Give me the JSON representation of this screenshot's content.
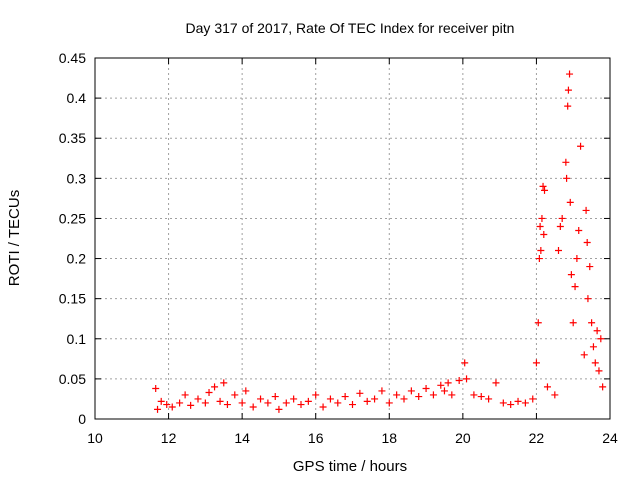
{
  "chart_data": {
    "type": "scatter",
    "title": "Day 317 of 2017, Rate Of TEC Index for receiver pitn",
    "xlabel": "GPS time / hours",
    "ylabel": "ROTI / TECUs",
    "xlim": [
      10,
      24
    ],
    "ylim": [
      0,
      0.45
    ],
    "x_ticks": [
      "10",
      "12",
      "14",
      "16",
      "18",
      "20",
      "22",
      "24"
    ],
    "y_ticks": [
      "0",
      "0.05",
      "0.1",
      "0.15",
      "0.2",
      "0.25",
      "0.3",
      "0.35",
      "0.4",
      "0.45"
    ],
    "grid": true,
    "marker": "+",
    "color": "#ff0000",
    "series": [
      {
        "points": [
          [
            11.65,
            0.038
          ],
          [
            11.7,
            0.012
          ],
          [
            11.8,
            0.022
          ],
          [
            11.95,
            0.018
          ],
          [
            12.1,
            0.015
          ],
          [
            12.3,
            0.02
          ],
          [
            12.45,
            0.03
          ],
          [
            12.6,
            0.017
          ],
          [
            12.8,
            0.025
          ],
          [
            13.0,
            0.02
          ],
          [
            13.1,
            0.033
          ],
          [
            13.25,
            0.04
          ],
          [
            13.4,
            0.022
          ],
          [
            13.5,
            0.045
          ],
          [
            13.6,
            0.018
          ],
          [
            13.8,
            0.03
          ],
          [
            14.0,
            0.02
          ],
          [
            14.1,
            0.035
          ],
          [
            14.3,
            0.015
          ],
          [
            14.5,
            0.025
          ],
          [
            14.7,
            0.02
          ],
          [
            14.9,
            0.028
          ],
          [
            15.0,
            0.012
          ],
          [
            15.2,
            0.02
          ],
          [
            15.4,
            0.025
          ],
          [
            15.6,
            0.018
          ],
          [
            15.8,
            0.022
          ],
          [
            16.0,
            0.03
          ],
          [
            16.2,
            0.015
          ],
          [
            16.4,
            0.025
          ],
          [
            16.6,
            0.02
          ],
          [
            16.8,
            0.028
          ],
          [
            17.0,
            0.018
          ],
          [
            17.2,
            0.032
          ],
          [
            17.4,
            0.022
          ],
          [
            17.6,
            0.025
          ],
          [
            17.8,
            0.035
          ],
          [
            18.0,
            0.02
          ],
          [
            18.2,
            0.03
          ],
          [
            18.4,
            0.025
          ],
          [
            18.6,
            0.035
          ],
          [
            18.8,
            0.028
          ],
          [
            19.0,
            0.038
          ],
          [
            19.2,
            0.03
          ],
          [
            19.4,
            0.042
          ],
          [
            19.5,
            0.035
          ],
          [
            19.6,
            0.045
          ],
          [
            19.7,
            0.03
          ],
          [
            19.9,
            0.048
          ],
          [
            20.05,
            0.07
          ],
          [
            20.1,
            0.05
          ],
          [
            20.3,
            0.03
          ],
          [
            20.5,
            0.028
          ],
          [
            20.7,
            0.025
          ],
          [
            20.9,
            0.045
          ],
          [
            21.1,
            0.02
          ],
          [
            21.3,
            0.018
          ],
          [
            21.5,
            0.022
          ],
          [
            21.7,
            0.02
          ],
          [
            21.9,
            0.025
          ],
          [
            22.0,
            0.07
          ],
          [
            22.05,
            0.12
          ],
          [
            22.08,
            0.2
          ],
          [
            22.1,
            0.24
          ],
          [
            22.12,
            0.21
          ],
          [
            22.15,
            0.25
          ],
          [
            22.18,
            0.29
          ],
          [
            22.2,
            0.23
          ],
          [
            22.22,
            0.285
          ],
          [
            22.3,
            0.04
          ],
          [
            22.5,
            0.03
          ],
          [
            22.6,
            0.21
          ],
          [
            22.65,
            0.24
          ],
          [
            22.7,
            0.25
          ],
          [
            22.8,
            0.32
          ],
          [
            22.82,
            0.3
          ],
          [
            22.85,
            0.39
          ],
          [
            22.87,
            0.41
          ],
          [
            22.9,
            0.43
          ],
          [
            22.92,
            0.27
          ],
          [
            22.95,
            0.18
          ],
          [
            23.0,
            0.12
          ],
          [
            23.05,
            0.165
          ],
          [
            23.1,
            0.2
          ],
          [
            23.15,
            0.235
          ],
          [
            23.2,
            0.34
          ],
          [
            23.3,
            0.08
          ],
          [
            23.35,
            0.26
          ],
          [
            23.38,
            0.22
          ],
          [
            23.4,
            0.15
          ],
          [
            23.45,
            0.19
          ],
          [
            23.5,
            0.12
          ],
          [
            23.55,
            0.09
          ],
          [
            23.6,
            0.07
          ],
          [
            23.65,
            0.11
          ],
          [
            23.7,
            0.06
          ],
          [
            23.75,
            0.1
          ],
          [
            23.8,
            0.04
          ]
        ]
      }
    ]
  }
}
